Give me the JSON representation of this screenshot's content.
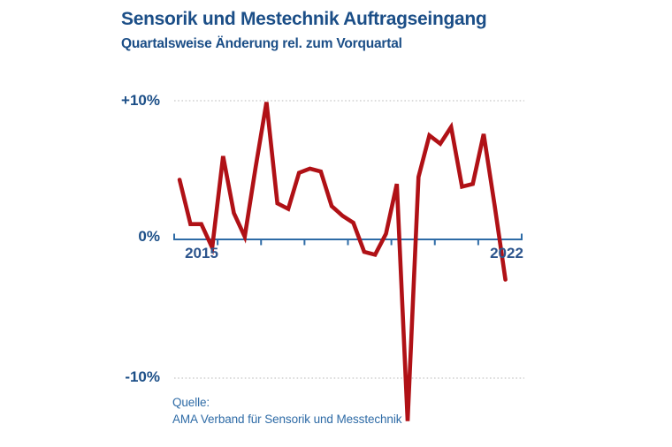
{
  "header": {
    "title": "Sensorik und Mestechnik Auftragseingang",
    "subtitle": "Quartalsweise Änderung rel. zum Vorquartal"
  },
  "source": {
    "label": "Quelle:",
    "name": "AMA Verband für Sensorik und Messtechnik"
  },
  "colors": {
    "background": "#ffffff",
    "title": "#1b4e87",
    "axis": "#2e6ba6",
    "line": "#b01116",
    "grid": "#c6c6c6",
    "year_label": "#2d558d",
    "source_text": "#2e6ba6"
  },
  "chart_data": {
    "type": "line",
    "title": "Sensorik und Mestechnik Auftragseingang",
    "subtitle": "Quartalsweise Änderung rel. zum Vorquartal",
    "unit": "%",
    "x": [
      "2015Q1",
      "2015Q2",
      "2015Q3",
      "2015Q4",
      "2016Q1",
      "2016Q2",
      "2016Q3",
      "2016Q4",
      "2017Q1",
      "2017Q2",
      "2017Q3",
      "2017Q4",
      "2018Q1",
      "2018Q2",
      "2018Q3",
      "2018Q4",
      "2019Q1",
      "2019Q2",
      "2019Q3",
      "2019Q4",
      "2020Q1",
      "2020Q2",
      "2020Q3",
      "2020Q4",
      "2021Q1",
      "2021Q2",
      "2021Q3",
      "2021Q4",
      "2022Q1",
      "2022Q2",
      "2022Q3"
    ],
    "values": [
      4.3,
      1.1,
      1.1,
      -0.6,
      6.0,
      1.9,
      0.2,
      5.2,
      9.9,
      2.6,
      2.2,
      4.8,
      5.1,
      4.9,
      2.4,
      1.7,
      1.2,
      -0.9,
      -1.1,
      0.4,
      4.0,
      -13.1,
      4.5,
      7.5,
      6.9,
      8.1,
      3.8,
      4.0,
      7.6,
      2.5,
      -2.9
    ],
    "ylim": [
      -14,
      11
    ],
    "xrange_years": [
      2015,
      2023
    ],
    "yticks": [
      {
        "value": 10,
        "label": "+10%"
      },
      {
        "value": 0,
        "label": "0%"
      },
      {
        "value": -10,
        "label": "-10%"
      }
    ],
    "x_axis_labels": [
      "2015",
      "2022"
    ],
    "grid": "dotted horizontal lines at +10% and -10%",
    "legend": "none"
  }
}
